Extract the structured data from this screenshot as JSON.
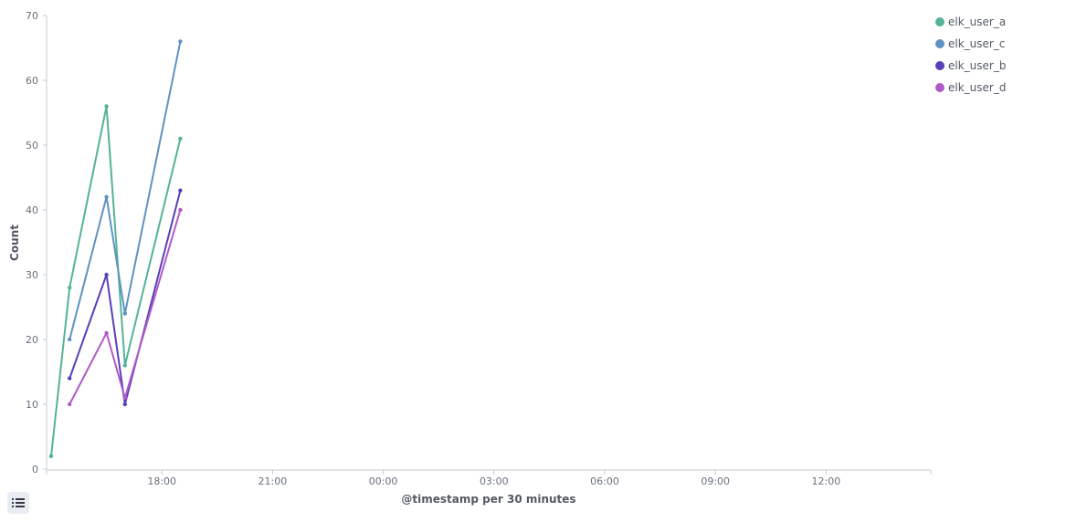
{
  "chart_data": {
    "type": "line",
    "xlabel": "@timestamp per 30 minutes",
    "ylabel": "Count",
    "ylim": [
      0,
      70
    ],
    "yticks": [
      0,
      10,
      20,
      30,
      40,
      50,
      60,
      70
    ],
    "xticks": [
      "18:00",
      "21:00",
      "00:00",
      "03:00",
      "06:00",
      "09:00",
      "12:00"
    ],
    "x": [
      "15:00",
      "15:30",
      "16:30",
      "17:00",
      "18:30"
    ],
    "series": [
      {
        "name": "elk_user_a",
        "color": "#54b399",
        "values": [
          2,
          28,
          56,
          16,
          51
        ]
      },
      {
        "name": "elk_user_c",
        "color": "#6092c0",
        "values": [
          null,
          20,
          42,
          24,
          66
        ]
      },
      {
        "name": "elk_user_b",
        "color": "#5a3fb8",
        "values": [
          null,
          14,
          30,
          10,
          43
        ]
      },
      {
        "name": "elk_user_d",
        "color": "#b05ac6",
        "values": [
          null,
          10,
          21,
          11,
          40
        ]
      }
    ],
    "grid": false,
    "legend_position": "top-right"
  },
  "legend_toggle_icon": "list-icon"
}
